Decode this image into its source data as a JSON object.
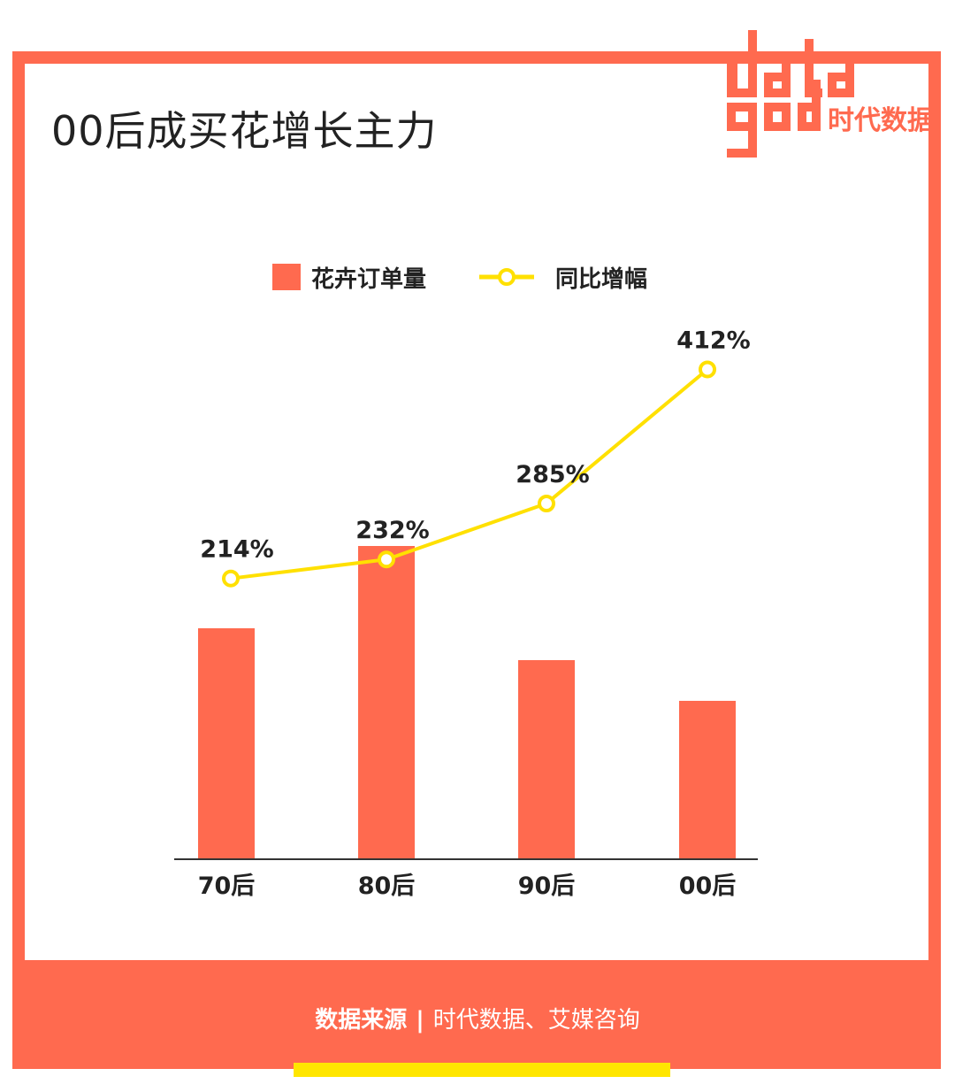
{
  "page": {
    "title": "00后成买花增长主力",
    "logo_word_top": "data",
    "logo_word_bottom": "god",
    "logo_cn": "时代数据",
    "source_label": "数据来源",
    "source_separator": "|",
    "source_text": "时代数据、艾媒咨询"
  },
  "colors": {
    "accent": "#ff6a4f",
    "line": "#ffe000",
    "title": "#222222",
    "axis": "#333333"
  },
  "chart_data": {
    "type": "bar",
    "categories": [
      "70后",
      "80后",
      "90后",
      "00后"
    ],
    "series": [
      {
        "name": "花卉订单量",
        "type": "bar",
        "values": [
          260,
          353,
          224,
          178
        ]
      },
      {
        "name": "同比增幅",
        "type": "line",
        "values": [
          214,
          232,
          285,
          412
        ],
        "labels": [
          "214%",
          "232%",
          "285%",
          "412%"
        ]
      }
    ],
    "ylim": [
      0,
      353
    ],
    "line_ylim": [
      0,
      412
    ],
    "legend_position": "top-center",
    "grid": false
  }
}
